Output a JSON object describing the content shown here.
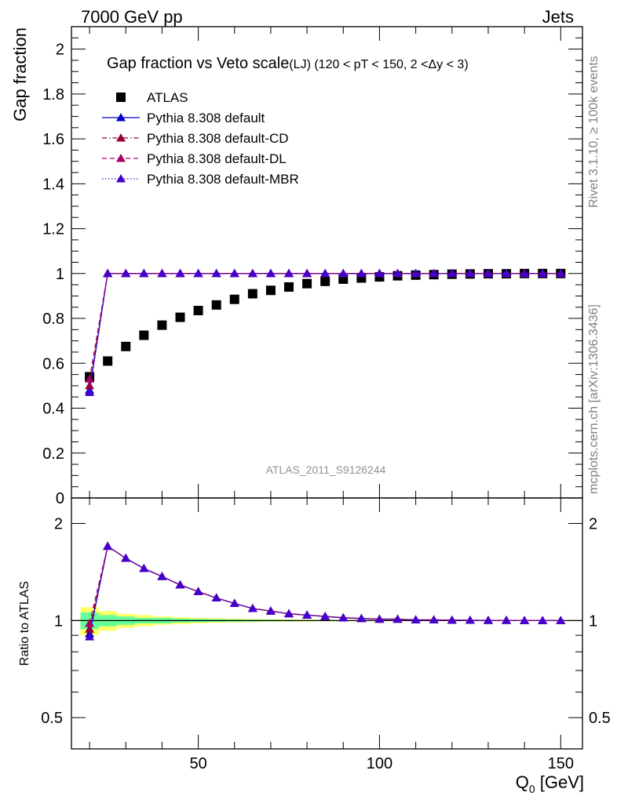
{
  "header": {
    "left": "7000 GeV pp",
    "right": "Jets"
  },
  "side_labels": {
    "rivet": "Rivet 3.1.10, ≥ 100k events",
    "mcplots": "mcplots.cern.ch [arXiv:1306.3436]"
  },
  "colors": {
    "data": "#000000",
    "default": "#0000cc",
    "cd": "#990033",
    "dl": "#aa0066",
    "mbr": "#4400cc",
    "band_inner": "#66ff99",
    "band_outer": "#ffff66"
  },
  "chart_data": {
    "type": "scatter",
    "title": "Gap fraction vs Veto scale",
    "title_suffix": "(LJ) (120 < pT < 150, 2 <Δy < 3)",
    "analysis_label": "ATLAS_2011_S9126244",
    "xlabel": "Q",
    "xlabel_sub": "0",
    "xlabel_unit": " [GeV]",
    "ylabel": "Gap fraction",
    "ratio_ylabel": "Ratio to ATLAS",
    "xlim": [
      15,
      156
    ],
    "ylim": [
      0,
      2.1
    ],
    "ratio_ylim": [
      0.4,
      2.4
    ],
    "ratio_log": true,
    "xticks": [
      "50",
      "100",
      "150"
    ],
    "yticks": [
      "0",
      "0.2",
      "0.4",
      "0.6",
      "0.8",
      "1",
      "1.2",
      "1.4",
      "1.6",
      "1.8",
      "2"
    ],
    "ratio_yticks": [
      "0.5",
      "1",
      "2"
    ],
    "legend_position": "top-left",
    "x": [
      20,
      25,
      30,
      35,
      40,
      45,
      50,
      55,
      60,
      65,
      70,
      75,
      80,
      85,
      90,
      95,
      100,
      105,
      110,
      115,
      120,
      125,
      130,
      135,
      140,
      145,
      150
    ],
    "series": [
      {
        "name": "ATLAS",
        "style": "data",
        "values": [
          0.54,
          0.61,
          0.675,
          0.725,
          0.77,
          0.805,
          0.835,
          0.86,
          0.885,
          0.91,
          0.925,
          0.94,
          0.955,
          0.965,
          0.975,
          0.98,
          0.985,
          0.99,
          0.993,
          0.995,
          0.997,
          0.998,
          0.999,
          0.999,
          1.0,
          1.0,
          1.0
        ]
      },
      {
        "name": "Pythia 8.308 default",
        "style": "solid",
        "values": [
          0.48,
          1.0,
          1.0,
          1.0,
          1.0,
          1.0,
          1.0,
          1.0,
          1.0,
          1.0,
          1.0,
          1.0,
          1.0,
          1.0,
          1.0,
          1.0,
          1.0,
          1.0,
          1.0,
          1.0,
          1.0,
          1.0,
          1.0,
          1.0,
          1.0,
          1.0,
          1.0
        ],
        "ratio": [
          0.91,
          1.7,
          1.56,
          1.45,
          1.37,
          1.29,
          1.23,
          1.175,
          1.13,
          1.09,
          1.07,
          1.05,
          1.04,
          1.03,
          1.02,
          1.015,
          1.01,
          1.01,
          1.005,
          1.005,
          1.003,
          1.002,
          1.001,
          1.001,
          1.0,
          1.0,
          1.0
        ]
      },
      {
        "name": "Pythia 8.308 default-CD",
        "style": "dashdot",
        "values": [
          0.5,
          1.0,
          1.0,
          1.0,
          1.0,
          1.0,
          1.0,
          1.0,
          1.0,
          1.0,
          1.0,
          1.0,
          1.0,
          1.0,
          1.0,
          1.0,
          1.0,
          1.0,
          1.0,
          1.0,
          1.0,
          1.0,
          1.0,
          1.0,
          1.0,
          1.0,
          1.0
        ],
        "ratio": [
          0.94,
          1.7,
          1.56,
          1.45,
          1.37,
          1.29,
          1.23,
          1.175,
          1.13,
          1.09,
          1.07,
          1.05,
          1.04,
          1.03,
          1.02,
          1.015,
          1.01,
          1.01,
          1.005,
          1.005,
          1.003,
          1.002,
          1.001,
          1.001,
          1.0,
          1.0,
          1.0
        ]
      },
      {
        "name": "Pythia 8.308 default-DL",
        "style": "dashed",
        "values": [
          0.53,
          1.0,
          1.0,
          1.0,
          1.0,
          1.0,
          1.0,
          1.0,
          1.0,
          1.0,
          1.0,
          1.0,
          1.0,
          1.0,
          1.0,
          1.0,
          1.0,
          1.0,
          1.0,
          1.0,
          1.0,
          1.0,
          1.0,
          1.0,
          1.0,
          1.0,
          1.0
        ],
        "ratio": [
          0.98,
          1.7,
          1.56,
          1.45,
          1.37,
          1.29,
          1.23,
          1.175,
          1.13,
          1.09,
          1.07,
          1.05,
          1.04,
          1.03,
          1.02,
          1.015,
          1.01,
          1.01,
          1.005,
          1.005,
          1.003,
          1.002,
          1.001,
          1.001,
          1.0,
          1.0,
          1.0
        ]
      },
      {
        "name": "Pythia 8.308 default-MBR",
        "style": "dotted",
        "values": [
          0.47,
          1.0,
          1.0,
          1.0,
          1.0,
          1.0,
          1.0,
          1.0,
          1.0,
          1.0,
          1.0,
          1.0,
          1.0,
          1.0,
          1.0,
          1.0,
          1.0,
          1.0,
          1.0,
          1.0,
          1.0,
          1.0,
          1.0,
          1.0,
          1.0,
          1.0,
          1.0
        ],
        "ratio": [
          0.89,
          1.7,
          1.56,
          1.45,
          1.37,
          1.29,
          1.23,
          1.175,
          1.13,
          1.09,
          1.07,
          1.05,
          1.04,
          1.03,
          1.02,
          1.015,
          1.01,
          1.01,
          1.005,
          1.005,
          1.003,
          1.002,
          1.001,
          1.001,
          1.0,
          1.0,
          1.0
        ]
      }
    ],
    "ratio_band": {
      "inner": [
        0.06,
        0.04,
        0.03,
        0.02,
        0.02,
        0.015,
        0.012,
        0.01,
        0.008,
        0.007,
        0.006,
        0.005,
        0.004,
        0.004,
        0.003,
        0.003,
        0.002,
        0.002,
        0.002,
        0.002,
        0.002,
        0.002,
        0.002,
        0.002,
        0.002,
        0.002,
        0.002
      ],
      "outer": [
        0.1,
        0.07,
        0.05,
        0.04,
        0.03,
        0.025,
        0.02,
        0.016,
        0.013,
        0.011,
        0.009,
        0.008,
        0.007,
        0.006,
        0.005,
        0.004,
        0.004,
        0.003,
        0.003,
        0.003,
        0.003,
        0.003,
        0.003,
        0.003,
        0.003,
        0.003,
        0.003
      ]
    }
  }
}
